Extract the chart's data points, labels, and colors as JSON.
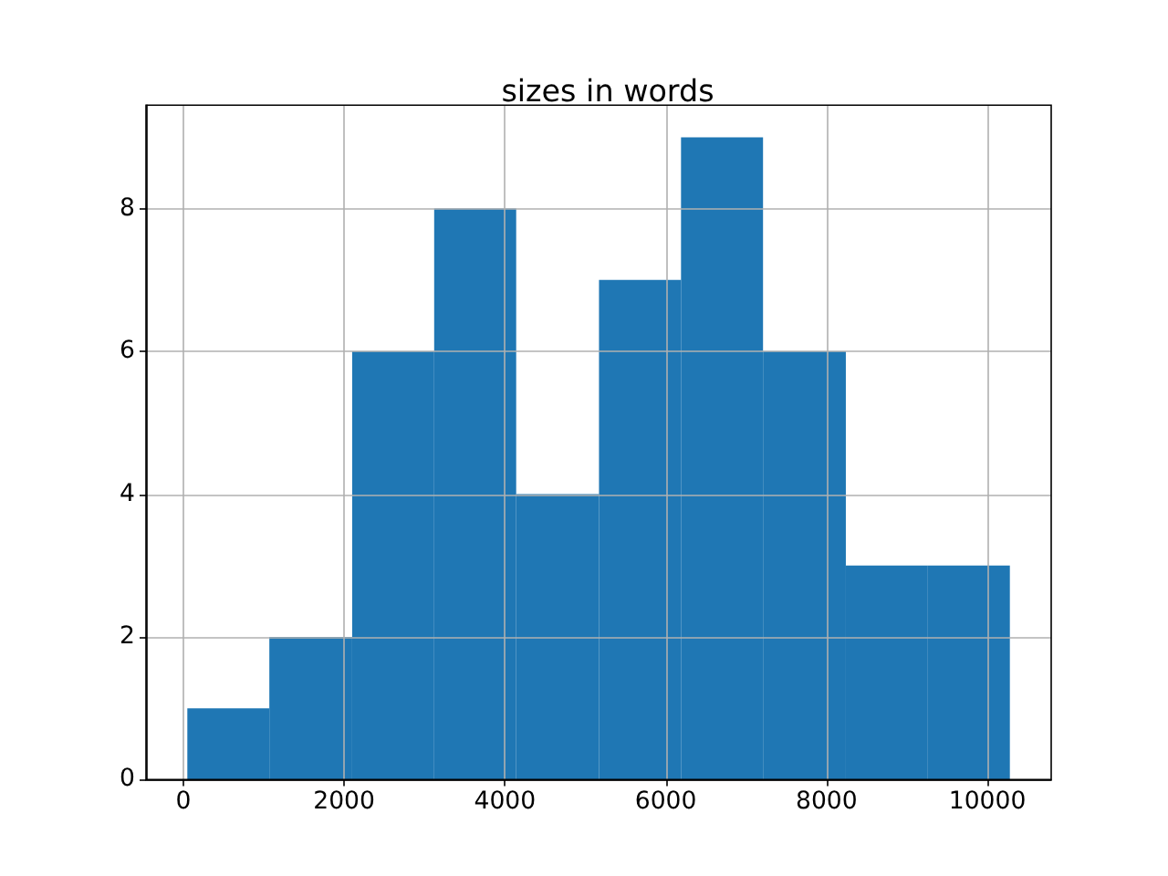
{
  "chart_data": {
    "type": "histogram",
    "title": "sizes in words",
    "bins": [
      50,
      1070,
      2100,
      3120,
      4140,
      5170,
      6190,
      7210,
      8240,
      9260,
      10280
    ],
    "values": [
      1,
      2,
      6,
      8,
      4,
      7,
      9,
      6,
      3,
      3
    ],
    "color": "#1f77b4",
    "xlim": [
      -464,
      10794
    ],
    "xticks": [
      0,
      2000,
      4000,
      6000,
      8000,
      10000
    ],
    "ylim": [
      0,
      9.45
    ],
    "yticks": [
      0,
      2,
      4,
      6,
      8
    ],
    "grid": true
  }
}
